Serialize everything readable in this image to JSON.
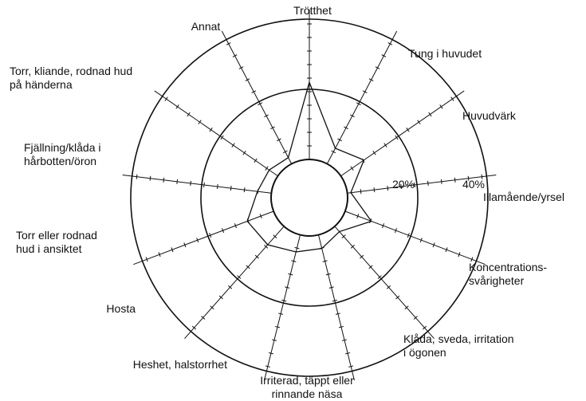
{
  "chart_data": {
    "type": "radar",
    "categories": [
      "Trötthet",
      "Tung i huvudet",
      "Huvudvärk",
      "Illamående/yrsel",
      "Koncentrations-\nsvårigheter",
      "Klåda, sveda, irritation\ni ögonen",
      "Irriterad, täppt eller\nrinnande näsa",
      "Heshet, halstorrhet",
      "Hosta",
      "Torr eller rodnad\nhud i ansiktet",
      "Fjällning/klåda i\nhårbotten/öron",
      "Torr, kliande, rodnad hud\npå händerna",
      "Annat"
    ],
    "values": [
      22,
      5,
      8,
      1,
      8,
      2,
      4,
      5,
      7,
      8,
      4,
      3,
      2
    ],
    "rlim": [
      0,
      40
    ],
    "rticks": [
      {
        "value": 20,
        "label": "20%"
      },
      {
        "value": 40,
        "label": "40%"
      }
    ],
    "color": "#111"
  }
}
